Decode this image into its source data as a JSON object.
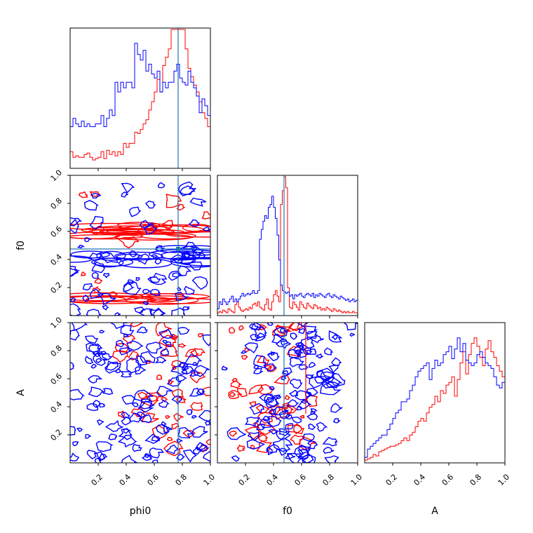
{
  "chart_data": {
    "type": "corner",
    "parameters": [
      "phi0",
      "f0",
      "A"
    ],
    "truths": {
      "phi0": 0.77,
      "f0": 0.475
    },
    "range": [
      0,
      1
    ],
    "ticks": [
      0.2,
      0.4,
      0.6,
      0.8,
      1.0
    ],
    "tick_labels": [
      "0.2",
      "0.4",
      "0.6",
      "0.8",
      "1.0"
    ],
    "xlabels": [
      "phi0",
      "f0",
      "A"
    ],
    "ylabels": [
      "",
      "f0",
      "A"
    ],
    "colors": {
      "blue": "#0000ff",
      "red": "#ff0000",
      "truth": "#1f77b4"
    },
    "series": [
      {
        "color": "blue",
        "phi0_hist": [
          0.3,
          0.36,
          0.32,
          0.3,
          0.34,
          0.3,
          0.32,
          0.3,
          0.3,
          0.32,
          0.32,
          0.38,
          0.3,
          0.36,
          0.42,
          0.38,
          0.62,
          0.55,
          0.62,
          0.58,
          0.62,
          0.62,
          0.58,
          0.9,
          0.82,
          0.78,
          0.85,
          0.7,
          0.75,
          0.68,
          0.65,
          0.7,
          0.55,
          0.62,
          0.58,
          0.62,
          0.62,
          0.7,
          0.75,
          0.65,
          0.62,
          0.6,
          0.7,
          0.62,
          0.58,
          0.52,
          0.4,
          0.5,
          0.45,
          0.38
        ],
        "f0_hist": [
          0.05,
          0.1,
          0.08,
          0.12,
          0.1,
          0.08,
          0.1,
          0.12,
          0.14,
          0.1,
          0.12,
          0.1,
          0.12,
          0.14,
          0.16,
          0.14,
          0.15,
          0.16,
          0.15,
          0.16,
          0.18,
          0.16,
          0.16,
          0.18,
          0.55,
          0.62,
          0.68,
          0.72,
          0.7,
          0.78,
          0.8,
          0.86,
          0.78,
          0.7,
          0.58,
          0.4,
          0.22,
          0.18,
          0.17,
          0.16,
          0.17,
          0.14,
          0.15,
          0.12,
          0.15,
          0.14,
          0.15,
          0.16,
          0.14,
          0.13,
          0.15,
          0.16,
          0.15,
          0.14,
          0.16,
          0.13,
          0.15,
          0.14,
          0.16,
          0.15,
          0.14,
          0.13,
          0.15,
          0.16,
          0.14,
          0.13,
          0.15,
          0.14,
          0.13,
          0.12,
          0.14,
          0.13,
          0.12,
          0.11,
          0.12,
          0.1,
          0.11,
          0.12,
          0.1,
          0.11
        ],
        "A_hist": [
          0.04,
          0.1,
          0.12,
          0.14,
          0.16,
          0.18,
          0.2,
          0.2,
          0.24,
          0.28,
          0.32,
          0.36,
          0.38,
          0.44,
          0.44,
          0.46,
          0.52,
          0.56,
          0.62,
          0.66,
          0.68,
          0.7,
          0.72,
          0.6,
          0.68,
          0.74,
          0.7,
          0.72,
          0.78,
          0.8,
          0.84,
          0.75,
          0.82,
          0.9,
          0.8,
          0.86,
          0.74,
          0.72,
          0.7,
          0.72,
          0.78,
          0.8,
          0.76,
          0.72,
          0.7,
          0.68,
          0.62,
          0.56,
          0.54,
          0.58
        ]
      },
      {
        "color": "red",
        "phi0_hist": [
          0.12,
          0.08,
          0.09,
          0.08,
          0.08,
          0.1,
          0.11,
          0.08,
          0.06,
          0.07,
          0.08,
          0.12,
          0.07,
          0.13,
          0.1,
          0.12,
          0.09,
          0.12,
          0.1,
          0.18,
          0.15,
          0.18,
          0.18,
          0.26,
          0.25,
          0.28,
          0.32,
          0.35,
          0.42,
          0.48,
          0.55,
          0.64,
          0.55,
          0.74,
          0.8,
          0.86,
          1.0,
          1.0,
          1.0,
          1.0,
          1.0,
          0.86,
          0.72,
          0.66,
          0.6,
          0.55,
          0.48,
          0.4,
          0.36,
          0.3
        ],
        "f0_hist": [
          0.02,
          0.03,
          0.02,
          0.04,
          0.03,
          0.02,
          0.05,
          0.04,
          0.03,
          0.02,
          0.08,
          0.1,
          0.06,
          0.04,
          0.03,
          0.04,
          0.05,
          0.04,
          0.06,
          0.05,
          0.08,
          0.09,
          0.07,
          0.1,
          0.06,
          0.05,
          0.04,
          0.08,
          0.12,
          0.05,
          0.04,
          0.1,
          0.15,
          0.18,
          0.14,
          0.1,
          0.8,
          0.9,
          1.0,
          0.92,
          0.2,
          0.06,
          0.05,
          0.1,
          0.08,
          0.06,
          0.04,
          0.1,
          0.08,
          0.06,
          0.05,
          0.09,
          0.07,
          0.06,
          0.05,
          0.08,
          0.07,
          0.05,
          0.06,
          0.04,
          0.05,
          0.04,
          0.06,
          0.05,
          0.04,
          0.03,
          0.05,
          0.04,
          0.03,
          0.04,
          0.03,
          0.02,
          0.03,
          0.02,
          0.03,
          0.02,
          0.02,
          0.03,
          0.02,
          0.02
        ],
        "A_hist": [
          0.02,
          0.03,
          0.04,
          0.06,
          0.05,
          0.08,
          0.09,
          0.1,
          0.11,
          0.12,
          0.12,
          0.13,
          0.14,
          0.16,
          0.18,
          0.16,
          0.2,
          0.22,
          0.26,
          0.3,
          0.32,
          0.3,
          0.36,
          0.4,
          0.42,
          0.48,
          0.44,
          0.52,
          0.5,
          0.56,
          0.58,
          0.62,
          0.48,
          0.6,
          0.72,
          0.8,
          0.64,
          0.78,
          0.86,
          0.9,
          0.84,
          0.76,
          0.7,
          0.82,
          0.88,
          0.8,
          0.76,
          0.7,
          0.66,
          0.62
        ],
        "f0_phi0_bands": [
          0.12,
          0.58,
          0.62
        ]
      }
    ]
  }
}
